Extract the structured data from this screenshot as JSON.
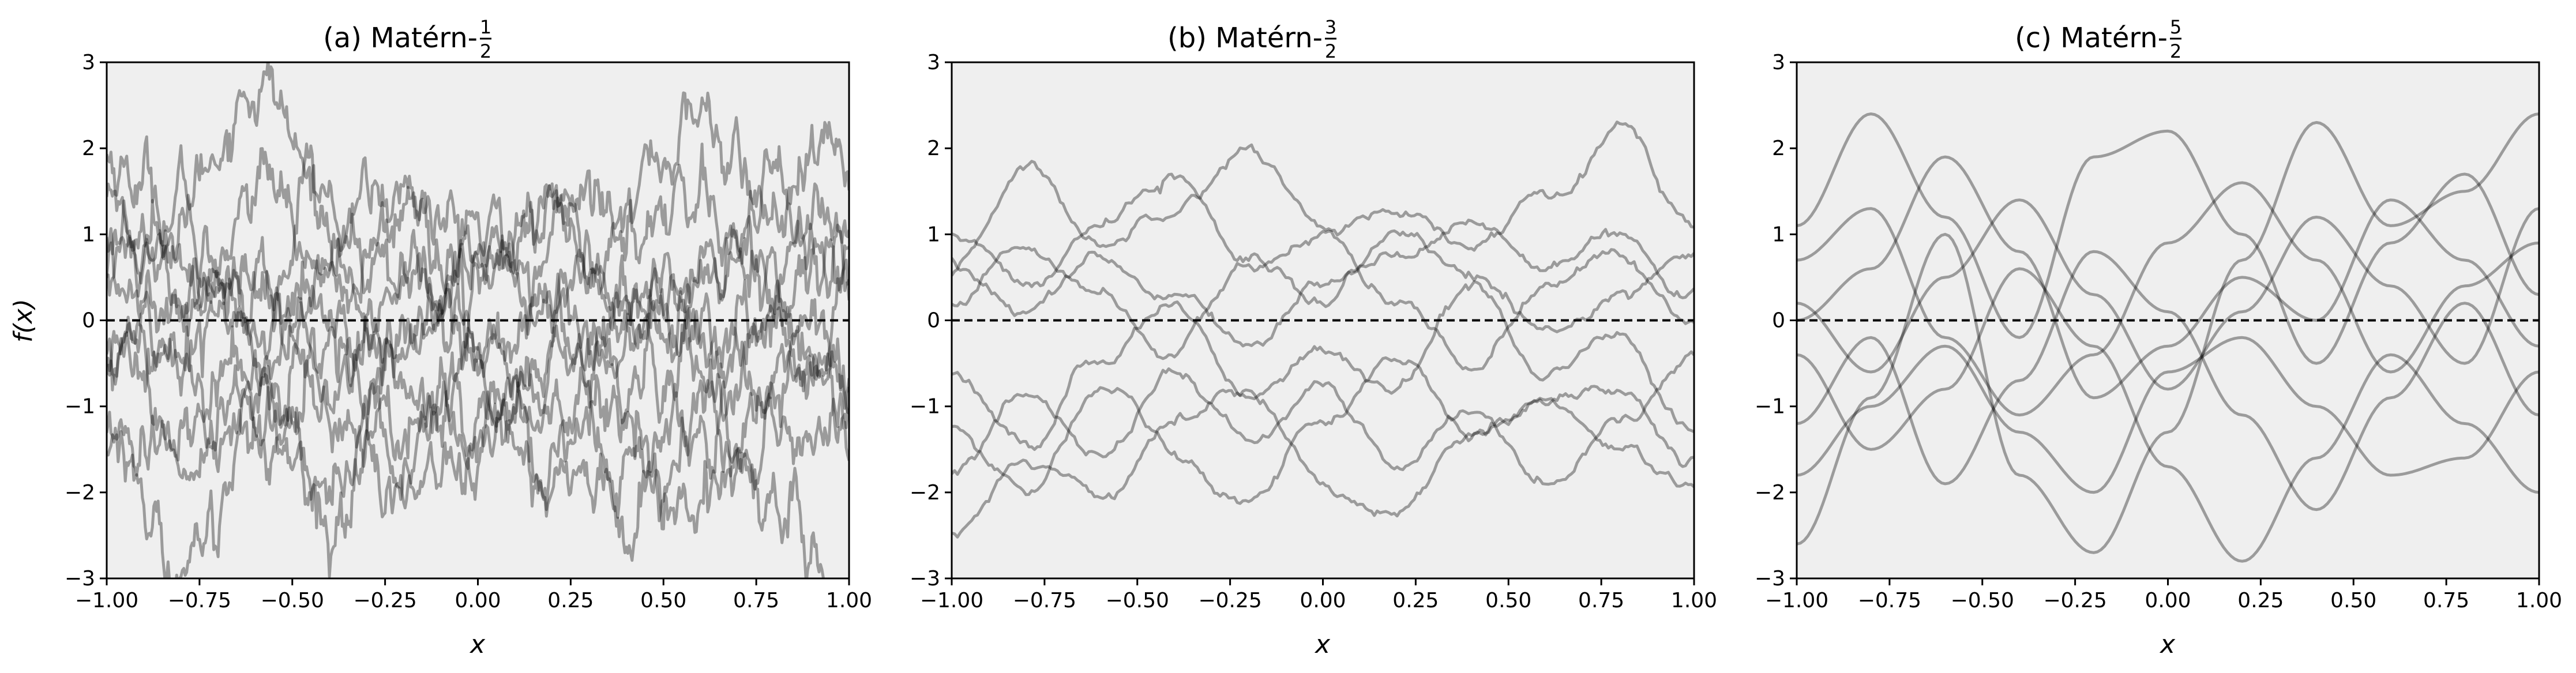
{
  "figure": {
    "ylabel": "f(x)"
  },
  "chart_data": [
    {
      "type": "line",
      "title": "(a) Matérn-",
      "title_fraction": {
        "numerator": "1",
        "denominator": "2"
      },
      "xlabel": "x",
      "ylabel": "f(x)",
      "xlim": [
        -1.0,
        1.0
      ],
      "ylim": [
        -3,
        3
      ],
      "xticks": [
        "−1.00",
        "−0.75",
        "−0.50",
        "−0.25",
        "0.00",
        "0.25",
        "0.50",
        "0.75",
        "1.00"
      ],
      "yticks": [
        "−3",
        "−2",
        "−1",
        "0",
        "1",
        "2",
        "3"
      ],
      "background": "#efefef",
      "line_color": "#000000",
      "line_alpha": 0.35,
      "grid": false,
      "zero_line": {
        "y": 0,
        "style": "dashed",
        "color": "#000000"
      },
      "sample_count": 20,
      "series": [
        {
          "x": [
            -1.0,
            -0.8,
            -0.6,
            -0.4,
            -0.2,
            0.0,
            0.2,
            0.4,
            0.6,
            0.8,
            1.0
          ],
          "y": [
            1.9,
            1.4,
            2.9,
            1.2,
            1.5,
            0.8,
            1.1,
            1.7,
            2.3,
            1.2,
            1.8
          ]
        },
        {
          "x": [
            -1.0,
            -0.8,
            -0.6,
            -0.4,
            -0.2,
            0.0,
            0.2,
            0.4,
            0.6,
            0.8,
            1.0
          ],
          "y": [
            0.5,
            1.2,
            0.6,
            0.2,
            -0.3,
            0.4,
            0.1,
            -0.5,
            0.3,
            0.9,
            1.3
          ]
        },
        {
          "x": [
            -1.0,
            -0.8,
            -0.6,
            -0.4,
            -0.2,
            0.0,
            0.2,
            0.4,
            0.6,
            0.8,
            1.0
          ],
          "y": [
            -0.3,
            -1.1,
            -0.5,
            -1.8,
            -0.8,
            -1.2,
            -0.4,
            -1.6,
            -0.9,
            -0.2,
            -1.0
          ]
        },
        {
          "x": [
            -1.0,
            -0.8,
            -0.6,
            -0.4,
            -0.2,
            0.0,
            0.2,
            0.4,
            0.6,
            0.8,
            1.0
          ],
          "y": [
            -1.8,
            -2.7,
            -1.4,
            -2.1,
            -1.2,
            -0.6,
            -1.9,
            -2.4,
            -1.1,
            -2.2,
            -2.9
          ]
        },
        {
          "x": [
            -1.0,
            -0.8,
            -0.6,
            -0.4,
            -0.2,
            0.0,
            0.2,
            0.4,
            0.6,
            0.8,
            1.0
          ],
          "y": [
            1.0,
            0.3,
            1.6,
            0.8,
            0.2,
            1.1,
            0.6,
            0.0,
            0.7,
            1.5,
            0.4
          ]
        },
        {
          "x": [
            -1.0,
            -0.8,
            -0.6,
            -0.4,
            -0.2,
            0.0,
            0.2,
            0.4,
            0.6,
            0.8,
            1.0
          ],
          "y": [
            -0.9,
            -0.2,
            -1.3,
            -0.4,
            -1.5,
            -0.7,
            -1.3,
            -0.2,
            -1.4,
            -0.6,
            -0.3
          ]
        },
        {
          "x": [
            -1.0,
            -0.8,
            -0.6,
            -0.4,
            -0.2,
            0.0,
            0.2,
            0.4,
            0.6,
            0.8,
            1.0
          ],
          "y": [
            0.2,
            -0.6,
            0.3,
            1.3,
            0.7,
            -0.2,
            0.9,
            0.5,
            -0.4,
            0.2,
            -0.7
          ]
        },
        {
          "x": [
            -1.0,
            -0.8,
            -0.6,
            -0.4,
            -0.2,
            0.0,
            0.2,
            0.4,
            0.6,
            0.8,
            1.0
          ],
          "y": [
            -1.3,
            -1.9,
            -0.9,
            -1.1,
            -2.3,
            -1.6,
            -0.8,
            -1.2,
            -2.0,
            -1.5,
            -1.9
          ]
        },
        {
          "x": [
            -1.0,
            -0.8,
            -0.6,
            -0.4,
            -0.2,
            0.0,
            0.2,
            0.4,
            0.6,
            0.8,
            1.0
          ],
          "y": [
            1.5,
            0.9,
            0.2,
            0.6,
            1.2,
            0.4,
            0.3,
            1.0,
            1.3,
            0.5,
            0.9
          ]
        },
        {
          "x": [
            -1.0,
            -0.8,
            -0.6,
            -0.4,
            -0.2,
            0.0,
            0.2,
            0.4,
            0.6,
            0.8,
            1.0
          ],
          "y": [
            -0.5,
            0.4,
            -0.2,
            -0.9,
            0.1,
            -0.4,
            -1.0,
            -0.3,
            0.2,
            -0.8,
            0.1
          ]
        }
      ]
    },
    {
      "type": "line",
      "title": "(b) Matérn-",
      "title_fraction": {
        "numerator": "3",
        "denominator": "2"
      },
      "xlabel": "x",
      "xlim": [
        -1.0,
        1.0
      ],
      "ylim": [
        -3,
        3
      ],
      "xticks": [
        "−1.00",
        "−0.75",
        "−0.50",
        "−0.25",
        "0.00",
        "0.25",
        "0.50",
        "0.75",
        "1.00"
      ],
      "yticks": [
        "−3",
        "−2",
        "−1",
        "0",
        "1",
        "2",
        "3"
      ],
      "background": "#efefef",
      "line_color": "#000000",
      "line_alpha": 0.35,
      "grid": false,
      "zero_line": {
        "y": 0,
        "style": "dashed",
        "color": "#000000"
      },
      "sample_count": 20,
      "series": [
        {
          "x": [
            -1.0,
            -0.8,
            -0.6,
            -0.4,
            -0.2,
            0.0,
            0.2,
            0.4,
            0.6,
            0.8,
            1.0
          ],
          "y": [
            0.5,
            1.8,
            0.9,
            1.4,
            2.0,
            1.1,
            1.2,
            0.8,
            1.5,
            2.3,
            1.1
          ]
        },
        {
          "x": [
            -1.0,
            -0.8,
            -0.6,
            -0.4,
            -0.2,
            0.0,
            0.2,
            0.4,
            0.6,
            0.8,
            1.0
          ],
          "y": [
            -2.5,
            -1.6,
            -2.0,
            -1.2,
            -0.7,
            -1.9,
            -2.3,
            -1.4,
            -0.9,
            -1.6,
            -2.1
          ]
        },
        {
          "x": [
            -1.0,
            -0.8,
            -0.6,
            -0.4,
            -0.2,
            0.0,
            0.2,
            0.4,
            0.6,
            0.8,
            1.0
          ],
          "y": [
            0.2,
            0.9,
            0.3,
            -0.4,
            0.6,
            1.0,
            0.1,
            -0.5,
            0.4,
            0.8,
            -0.1
          ]
        },
        {
          "x": [
            -1.0,
            -0.8,
            -0.6,
            -0.4,
            -0.2,
            0.0,
            0.2,
            0.4,
            0.6,
            0.8,
            1.0
          ],
          "y": [
            -1.8,
            -0.9,
            -1.5,
            -0.6,
            -1.4,
            -0.8,
            -1.7,
            -1.0,
            -1.9,
            -1.2,
            -0.5
          ]
        },
        {
          "x": [
            -1.0,
            -0.8,
            -0.6,
            -0.4,
            -0.2,
            0.0,
            0.2,
            0.4,
            0.6,
            0.8,
            1.0
          ],
          "y": [
            1.0,
            0.4,
            1.1,
            1.7,
            0.7,
            0.2,
            1.0,
            0.5,
            -0.2,
            0.3,
            0.9
          ]
        },
        {
          "x": [
            -1.0,
            -0.8,
            -0.6,
            -0.4,
            -0.2,
            0.0,
            0.2,
            0.4,
            0.6,
            0.8,
            1.0
          ],
          "y": [
            -0.6,
            -1.5,
            -0.4,
            0.2,
            -0.9,
            -0.3,
            -0.8,
            0.4,
            -0.6,
            -0.2,
            -1.3
          ]
        },
        {
          "x": [
            -1.0,
            -0.8,
            -0.6,
            -0.4,
            -0.2,
            0.0,
            0.2,
            0.4,
            0.6,
            0.8,
            1.0
          ],
          "y": [
            -1.2,
            -2.0,
            -0.8,
            -1.5,
            -2.1,
            -1.1,
            -0.4,
            -1.3,
            -1.0,
            -0.7,
            -1.6
          ]
        },
        {
          "x": [
            -1.0,
            -0.8,
            -0.6,
            -0.4,
            -0.2,
            0.0,
            0.2,
            0.4,
            0.6,
            0.8,
            1.0
          ],
          "y": [
            0.7,
            0.1,
            0.8,
            0.3,
            -0.3,
            0.5,
            0.8,
            1.1,
            0.6,
            1.0,
            0.3
          ]
        }
      ]
    },
    {
      "type": "line",
      "title": "(c) Matérn-",
      "title_fraction": {
        "numerator": "5",
        "denominator": "2"
      },
      "xlabel": "x",
      "xlim": [
        -1.0,
        1.0
      ],
      "ylim": [
        -3,
        3
      ],
      "xticks": [
        "−1.00",
        "−0.75",
        "−0.50",
        "−0.25",
        "0.00",
        "0.25",
        "0.50",
        "0.75",
        "1.00"
      ],
      "yticks": [
        "−3",
        "−2",
        "−1",
        "0",
        "1",
        "2",
        "3"
      ],
      "background": "#efefef",
      "line_color": "#000000",
      "line_alpha": 0.35,
      "grid": false,
      "zero_line": {
        "y": 0,
        "style": "dashed",
        "color": "#000000"
      },
      "sample_count": 20,
      "series": [
        {
          "x": [
            -1.0,
            -0.8,
            -0.6,
            -0.4,
            -0.2,
            0.0,
            0.2,
            0.4,
            0.6,
            0.8,
            1.0
          ],
          "y": [
            -2.6,
            -0.9,
            1.0,
            -1.8,
            -2.7,
            -1.3,
            0.7,
            2.3,
            1.1,
            1.5,
            2.4
          ]
        },
        {
          "x": [
            -1.0,
            -0.8,
            -0.6,
            -0.4,
            -0.2,
            0.0,
            0.2,
            0.4,
            0.6,
            0.8,
            1.0
          ],
          "y": [
            1.1,
            2.4,
            1.2,
            -0.2,
            1.9,
            2.2,
            1.0,
            -0.5,
            0.9,
            1.7,
            0.3
          ]
        },
        {
          "x": [
            -1.0,
            -0.8,
            -0.6,
            -0.4,
            -0.2,
            0.0,
            0.2,
            0.4,
            0.6,
            0.8,
            1.0
          ],
          "y": [
            -0.4,
            -1.5,
            -0.8,
            0.6,
            -0.3,
            -1.7,
            -2.8,
            -1.6,
            -0.4,
            -1.2,
            -2.0
          ]
        },
        {
          "x": [
            -1.0,
            -0.8,
            -0.6,
            -0.4,
            -0.2,
            0.0,
            0.2,
            0.4,
            0.6,
            0.8,
            1.0
          ],
          "y": [
            0.2,
            -0.6,
            0.5,
            1.4,
            0.3,
            -0.8,
            0.1,
            1.2,
            0.4,
            -0.5,
            1.3
          ]
        },
        {
          "x": [
            -1.0,
            -0.8,
            -0.6,
            -0.4,
            -0.2,
            0.0,
            0.2,
            0.4,
            0.6,
            0.8,
            1.0
          ],
          "y": [
            -1.2,
            -0.2,
            -1.9,
            -0.7,
            0.8,
            0.1,
            -1.1,
            -2.2,
            -0.9,
            0.2,
            -1.1
          ]
        },
        {
          "x": [
            -1.0,
            -0.8,
            -0.6,
            -0.4,
            -0.2,
            0.0,
            0.2,
            0.4,
            0.6,
            0.8,
            1.0
          ],
          "y": [
            0.7,
            1.3,
            -0.2,
            -1.1,
            -0.4,
            0.9,
            1.6,
            0.7,
            -0.6,
            0.4,
            0.9
          ]
        },
        {
          "x": [
            -1.0,
            -0.8,
            -0.6,
            -0.4,
            -0.2,
            0.0,
            0.2,
            0.4,
            0.6,
            0.8,
            1.0
          ],
          "y": [
            -1.8,
            -1.0,
            -0.3,
            -1.3,
            -2.0,
            -0.6,
            -0.2,
            -1.0,
            -1.8,
            -1.6,
            -0.6
          ]
        },
        {
          "x": [
            -1.0,
            -0.8,
            -0.6,
            -0.4,
            -0.2,
            0.0,
            0.2,
            0.4,
            0.6,
            0.8,
            1.0
          ],
          "y": [
            0.0,
            0.6,
            1.9,
            0.8,
            -0.9,
            -0.3,
            0.5,
            0.0,
            1.4,
            0.7,
            -0.3
          ]
        }
      ]
    }
  ]
}
